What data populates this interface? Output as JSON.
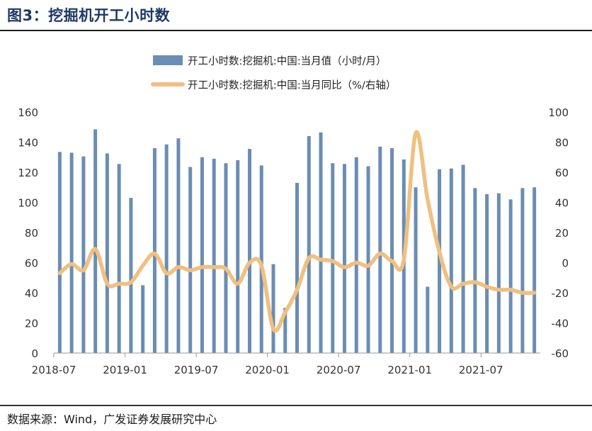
{
  "figure": {
    "title": "图3：挖掘机开工小时数",
    "source": "数据来源：Wind，广发证券发展研究中心"
  },
  "colors": {
    "bar": "#6a8db3",
    "line": "#f0c080",
    "title": "#1f3864"
  },
  "chart_data": {
    "type": "bar",
    "title": "",
    "legend_position": "top-center",
    "grid": false,
    "x_tick_labels": [
      "2018-07",
      "2019-01",
      "2019-07",
      "2020-01",
      "2020-07",
      "2021-01",
      "2021-07"
    ],
    "x_tick_positions": [
      "2018-07",
      "2019-01",
      "2019-07",
      "2020-01",
      "2020-07",
      "2021-01",
      "2021-07"
    ],
    "categories": [
      "2018-07",
      "2018-08",
      "2018-09",
      "2018-10",
      "2018-11",
      "2018-12",
      "2019-01",
      "2019-02",
      "2019-03",
      "2019-04",
      "2019-05",
      "2019-06",
      "2019-07",
      "2019-08",
      "2019-09",
      "2019-10",
      "2019-11",
      "2019-12",
      "2020-01",
      "2020-02",
      "2020-03",
      "2020-04",
      "2020-05",
      "2020-06",
      "2020-07",
      "2020-08",
      "2020-09",
      "2020-10",
      "2020-11",
      "2020-12",
      "2021-01",
      "2021-02",
      "2021-03",
      "2021-04",
      "2021-05",
      "2021-06",
      "2021-07",
      "2021-08",
      "2021-09",
      "2021-10",
      "2021-11"
    ],
    "y_left": {
      "ylim": [
        0,
        160
      ],
      "ticks": [
        0,
        20,
        40,
        60,
        80,
        100,
        120,
        140,
        160
      ]
    },
    "y_right": {
      "ylim": [
        -60,
        100
      ],
      "ticks": [
        -60,
        -40,
        -20,
        0,
        20,
        40,
        60,
        80,
        100
      ]
    },
    "series": [
      {
        "name": "开工小时数:挖掘机:中国:当月值（小时/月）",
        "type": "bar",
        "axis": "left",
        "values": [
          133.5,
          133,
          130.5,
          148.5,
          132.5,
          125.5,
          103,
          45,
          136,
          138.5,
          142.5,
          123.5,
          130,
          129,
          126,
          128,
          135.5,
          124.5,
          59,
          30,
          113,
          144,
          146.5,
          126,
          125.5,
          130,
          124,
          137,
          136,
          128.5,
          110,
          44,
          122,
          122.5,
          125,
          109.5,
          105.5,
          106,
          102,
          109.5,
          110
        ]
      },
      {
        "name": "开工小时数:挖掘机:中国:当月同比（%/右轴）",
        "type": "line",
        "axis": "right",
        "values": [
          -7,
          -1,
          -5,
          9,
          -14,
          -14,
          -13,
          -2,
          6,
          -7,
          -3,
          -5,
          -3,
          -3,
          -4,
          -14,
          0,
          -2,
          -44,
          -33,
          -18,
          3,
          2,
          1,
          -3,
          0,
          -2,
          6,
          1,
          2,
          86,
          42,
          7,
          -16,
          -14,
          -13,
          -16,
          -18,
          -18,
          -20,
          -20
        ]
      }
    ]
  }
}
